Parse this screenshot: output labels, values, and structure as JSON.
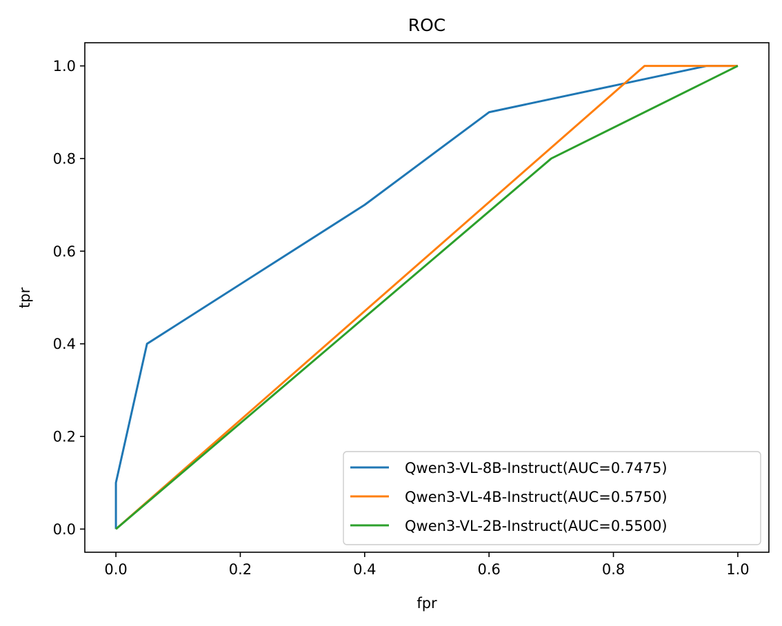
{
  "chart_data": {
    "type": "line",
    "title": "ROC",
    "xlabel": "fpr",
    "ylabel": "tpr",
    "xlim": [
      -0.05,
      1.05
    ],
    "ylim": [
      -0.05,
      1.05
    ],
    "xticks": [
      0.0,
      0.2,
      0.4,
      0.6,
      0.8,
      1.0
    ],
    "xtick_labels": [
      "0.0",
      "0.2",
      "0.4",
      "0.6",
      "0.8",
      "1.0"
    ],
    "yticks": [
      0.0,
      0.2,
      0.4,
      0.6,
      0.8,
      1.0
    ],
    "ytick_labels": [
      "0.0",
      "0.2",
      "0.4",
      "0.6",
      "0.8",
      "1.0"
    ],
    "grid": false,
    "legend_position": "bottom-right",
    "series": [
      {
        "name": "Qwen3-VL-8B-Instruct(AUC=0.7475)",
        "color": "#1f77b4",
        "x": [
          0.0,
          0.0,
          0.05,
          0.4,
          0.6,
          0.95,
          1.0
        ],
        "y": [
          0.0,
          0.1,
          0.4,
          0.7,
          0.9,
          1.0,
          1.0
        ]
      },
      {
        "name": "Qwen3-VL-4B-Instruct(AUC=0.5750)",
        "color": "#ff7f0e",
        "x": [
          0.0,
          0.85,
          1.0
        ],
        "y": [
          0.0,
          1.0,
          1.0
        ]
      },
      {
        "name": "Qwen3-VL-2B-Instruct(AUC=0.5500)",
        "color": "#2ca02c",
        "x": [
          0.0,
          0.7,
          1.0
        ],
        "y": [
          0.0,
          0.8,
          1.0
        ]
      }
    ]
  }
}
